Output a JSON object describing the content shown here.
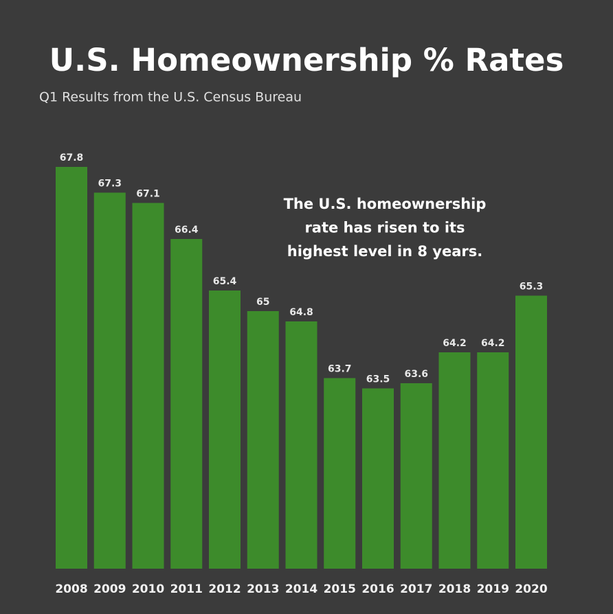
{
  "chart_data": {
    "type": "bar",
    "title": "U.S. Homeownership % Rates",
    "subtitle": "Q1 Results from the U.S. Census Bureau",
    "annotation": [
      "The U.S. homeownership",
      "rate has risen to its",
      "highest level in 8 years."
    ],
    "categories": [
      "2008",
      "2009",
      "2010",
      "2011",
      "2012",
      "2013",
      "2014",
      "2015",
      "2016",
      "2017",
      "2018",
      "2019",
      "2020"
    ],
    "values": [
      67.8,
      67.3,
      67.1,
      66.4,
      65.4,
      65,
      64.8,
      63.7,
      63.5,
      63.6,
      64.2,
      64.2,
      65.3
    ],
    "color": "#3d8b2b",
    "ylim": [
      60,
      68
    ],
    "grid": false
  }
}
